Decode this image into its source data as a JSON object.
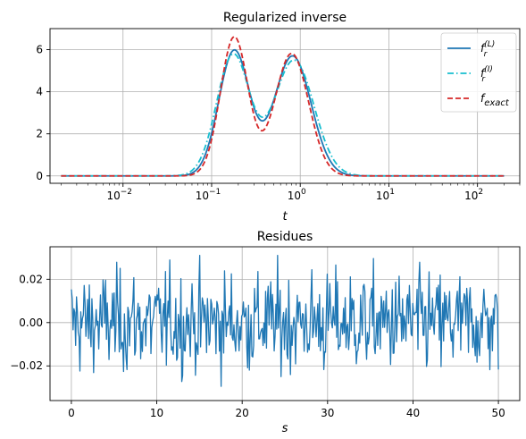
{
  "chart_data": [
    {
      "type": "line",
      "title": "Regularized inverse",
      "xlabel": "t",
      "ylabel": "",
      "xscale": "log",
      "xlim": [
        0.0015,
        300
      ],
      "ylim": [
        -0.35,
        7
      ],
      "grid": true,
      "legend_position": "top-right",
      "x_ticks": [
        {
          "value": 0.01,
          "base": "10",
          "exp": "−2"
        },
        {
          "value": 0.1,
          "base": "10",
          "exp": "−1"
        },
        {
          "value": 1,
          "base": "10",
          "exp": "0"
        },
        {
          "value": 10,
          "base": "10",
          "exp": "1"
        },
        {
          "value": 100,
          "base": "10",
          "exp": "2"
        }
      ],
      "y_ticks": [
        0,
        2,
        4,
        6
      ],
      "curve_model": {
        "description": "sum of two log-normal bumps over t",
        "t_range": [
          0.002,
          200
        ]
      },
      "series": [
        {
          "key": "fL",
          "legend_main": "f",
          "legend_sub": "r",
          "legend_sup": "(L)",
          "color": "#1f77b4",
          "dash": "solid",
          "peaks": [
            {
              "t": 0.18,
              "height": 5.95,
              "width": 0.4
            },
            {
              "t": 0.82,
              "height": 5.7,
              "width": 0.48
            }
          ]
        },
        {
          "key": "fI",
          "legend_main": "f",
          "legend_sub": "r",
          "legend_sup": "(I)",
          "color": "#17becf",
          "dash": "dashdot",
          "peaks": [
            {
              "t": 0.175,
              "height": 5.75,
              "width": 0.43
            },
            {
              "t": 0.85,
              "height": 5.5,
              "width": 0.52
            }
          ]
        },
        {
          "key": "fexact",
          "legend_main": "f",
          "legend_sub": "exact",
          "legend_sup": "",
          "color": "#d62728",
          "dash": "dashed",
          "peaks": [
            {
              "t": 0.18,
              "height": 6.6,
              "width": 0.36
            },
            {
              "t": 0.8,
              "height": 5.82,
              "width": 0.44
            }
          ]
        }
      ]
    },
    {
      "type": "line",
      "title": "Residues",
      "xlabel": "s",
      "ylabel": "",
      "xlim": [
        -2.5,
        52.5
      ],
      "ylim": [
        -0.036,
        0.035
      ],
      "grid": true,
      "x_ticks": [
        0,
        10,
        20,
        30,
        40,
        50
      ],
      "y_ticks": [
        {
          "value": 0.02,
          "label": "0.02"
        },
        {
          "value": 0.0,
          "label": "0.00"
        },
        {
          "value": -0.02,
          "label": "−0.02"
        }
      ],
      "series": [
        {
          "name": "",
          "color": "#1f77b4",
          "n_points": 500,
          "s_range": [
            0,
            50
          ],
          "noise_std": 0.0115,
          "noise_clip": 0.031
        }
      ]
    }
  ]
}
